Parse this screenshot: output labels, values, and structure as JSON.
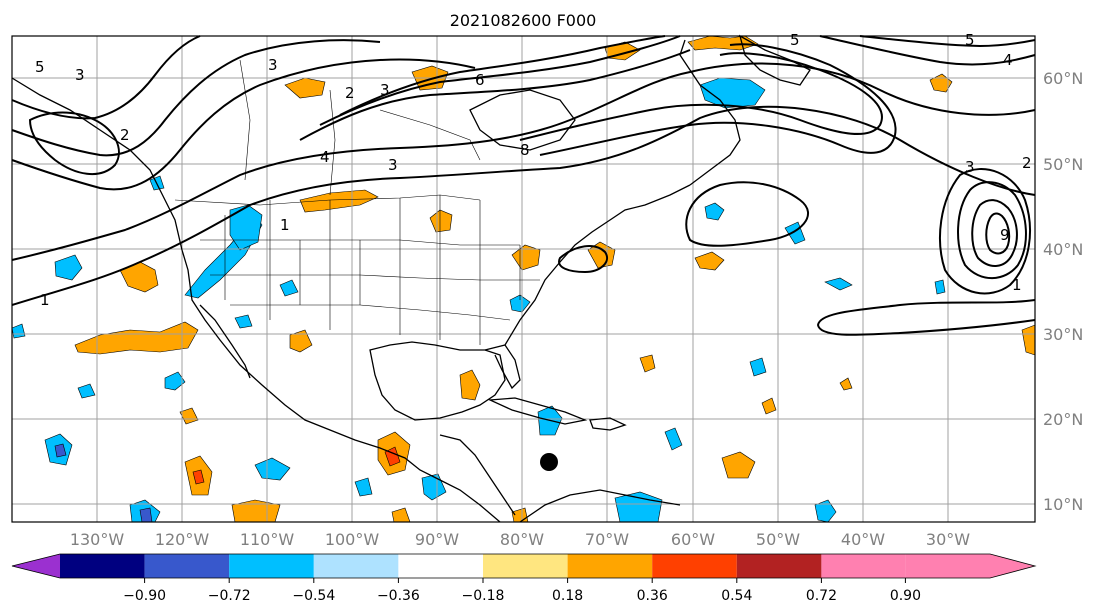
{
  "title": "2021082600 F000",
  "lat_labels": [
    "60°N",
    "50°N",
    "40°N",
    "30°N",
    "20°N",
    "10°N"
  ],
  "lon_labels": [
    "130°W",
    "120°W",
    "110°W",
    "100°W",
    "90°W",
    "80°W",
    "70°W",
    "60°W",
    "50°W",
    "40°W",
    "30°W"
  ],
  "colorbar": {
    "colors": [
      "#9b30d0",
      "#000080",
      "#3858cc",
      "#00bfff",
      "#aee2ff",
      "#ffffff",
      "#ffe680",
      "#ffa500",
      "#ff4000",
      "#b22222",
      "#ff80b0"
    ],
    "tick_labels": [
      "−0.90",
      "−0.72",
      "−0.54",
      "−0.36",
      "−0.18",
      "0.18",
      "0.36",
      "0.54",
      "0.72",
      "0.90"
    ],
    "extend": "both"
  },
  "contour_labels": [
    "5",
    "3",
    "1",
    "2",
    "2",
    "3",
    "6",
    "4",
    "3",
    "8",
    "1",
    "3",
    "5",
    "4",
    "5",
    "2",
    "3",
    "9",
    "1"
  ],
  "marker": {
    "lat": 15,
    "lon": "75°W",
    "shape": "filled-circle",
    "color": "#000000"
  }
}
